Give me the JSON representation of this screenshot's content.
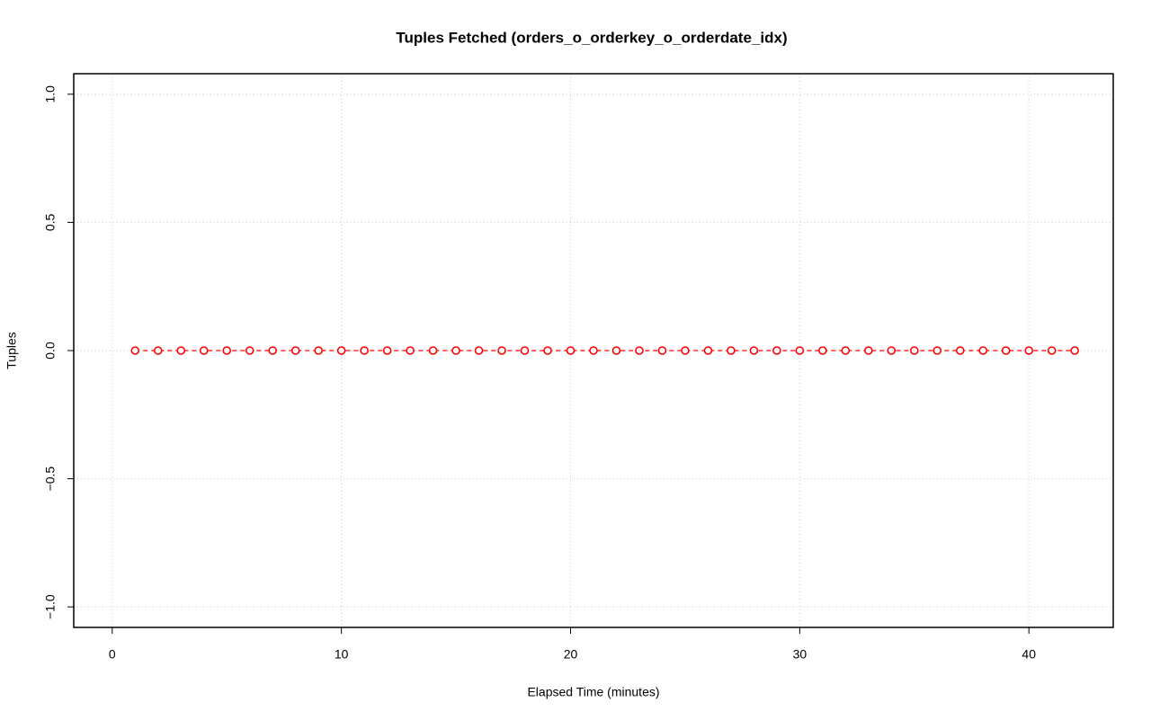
{
  "chart_data": {
    "type": "line",
    "title": "Tuples Fetched (orders_o_orderkey_o_orderdate_idx)",
    "x_label": "Elapsed Time (minutes)",
    "y_label": "Tuples",
    "x": [
      1,
      2,
      3,
      4,
      5,
      6,
      7,
      8,
      9,
      10,
      11,
      12,
      13,
      14,
      15,
      16,
      17,
      18,
      19,
      20,
      21,
      22,
      23,
      24,
      25,
      26,
      27,
      28,
      29,
      30,
      31,
      32,
      33,
      34,
      35,
      36,
      37,
      38,
      39,
      40,
      41,
      42
    ],
    "values": [
      0,
      0,
      0,
      0,
      0,
      0,
      0,
      0,
      0,
      0,
      0,
      0,
      0,
      0,
      0,
      0,
      0,
      0,
      0,
      0,
      0,
      0,
      0,
      0,
      0,
      0,
      0,
      0,
      0,
      0,
      0,
      0,
      0,
      0,
      0,
      0,
      0,
      0,
      0,
      0,
      0,
      0
    ],
    "color": "#ff0000",
    "line_style": "dashed",
    "marker": "open-circle",
    "xlim": [
      -1.68,
      43.68
    ],
    "xticks": [
      0,
      10,
      20,
      30,
      40
    ],
    "ylim": [
      -1.08,
      1.08
    ],
    "yticks": [
      {
        "value": -1,
        "label": "−1.0"
      },
      {
        "value": -0.5,
        "label": "−0.5"
      },
      {
        "value": 0,
        "label": "0.0"
      },
      {
        "value": 0.5,
        "label": "0.5"
      },
      {
        "value": 1,
        "label": "1.0"
      }
    ],
    "grid": true
  }
}
